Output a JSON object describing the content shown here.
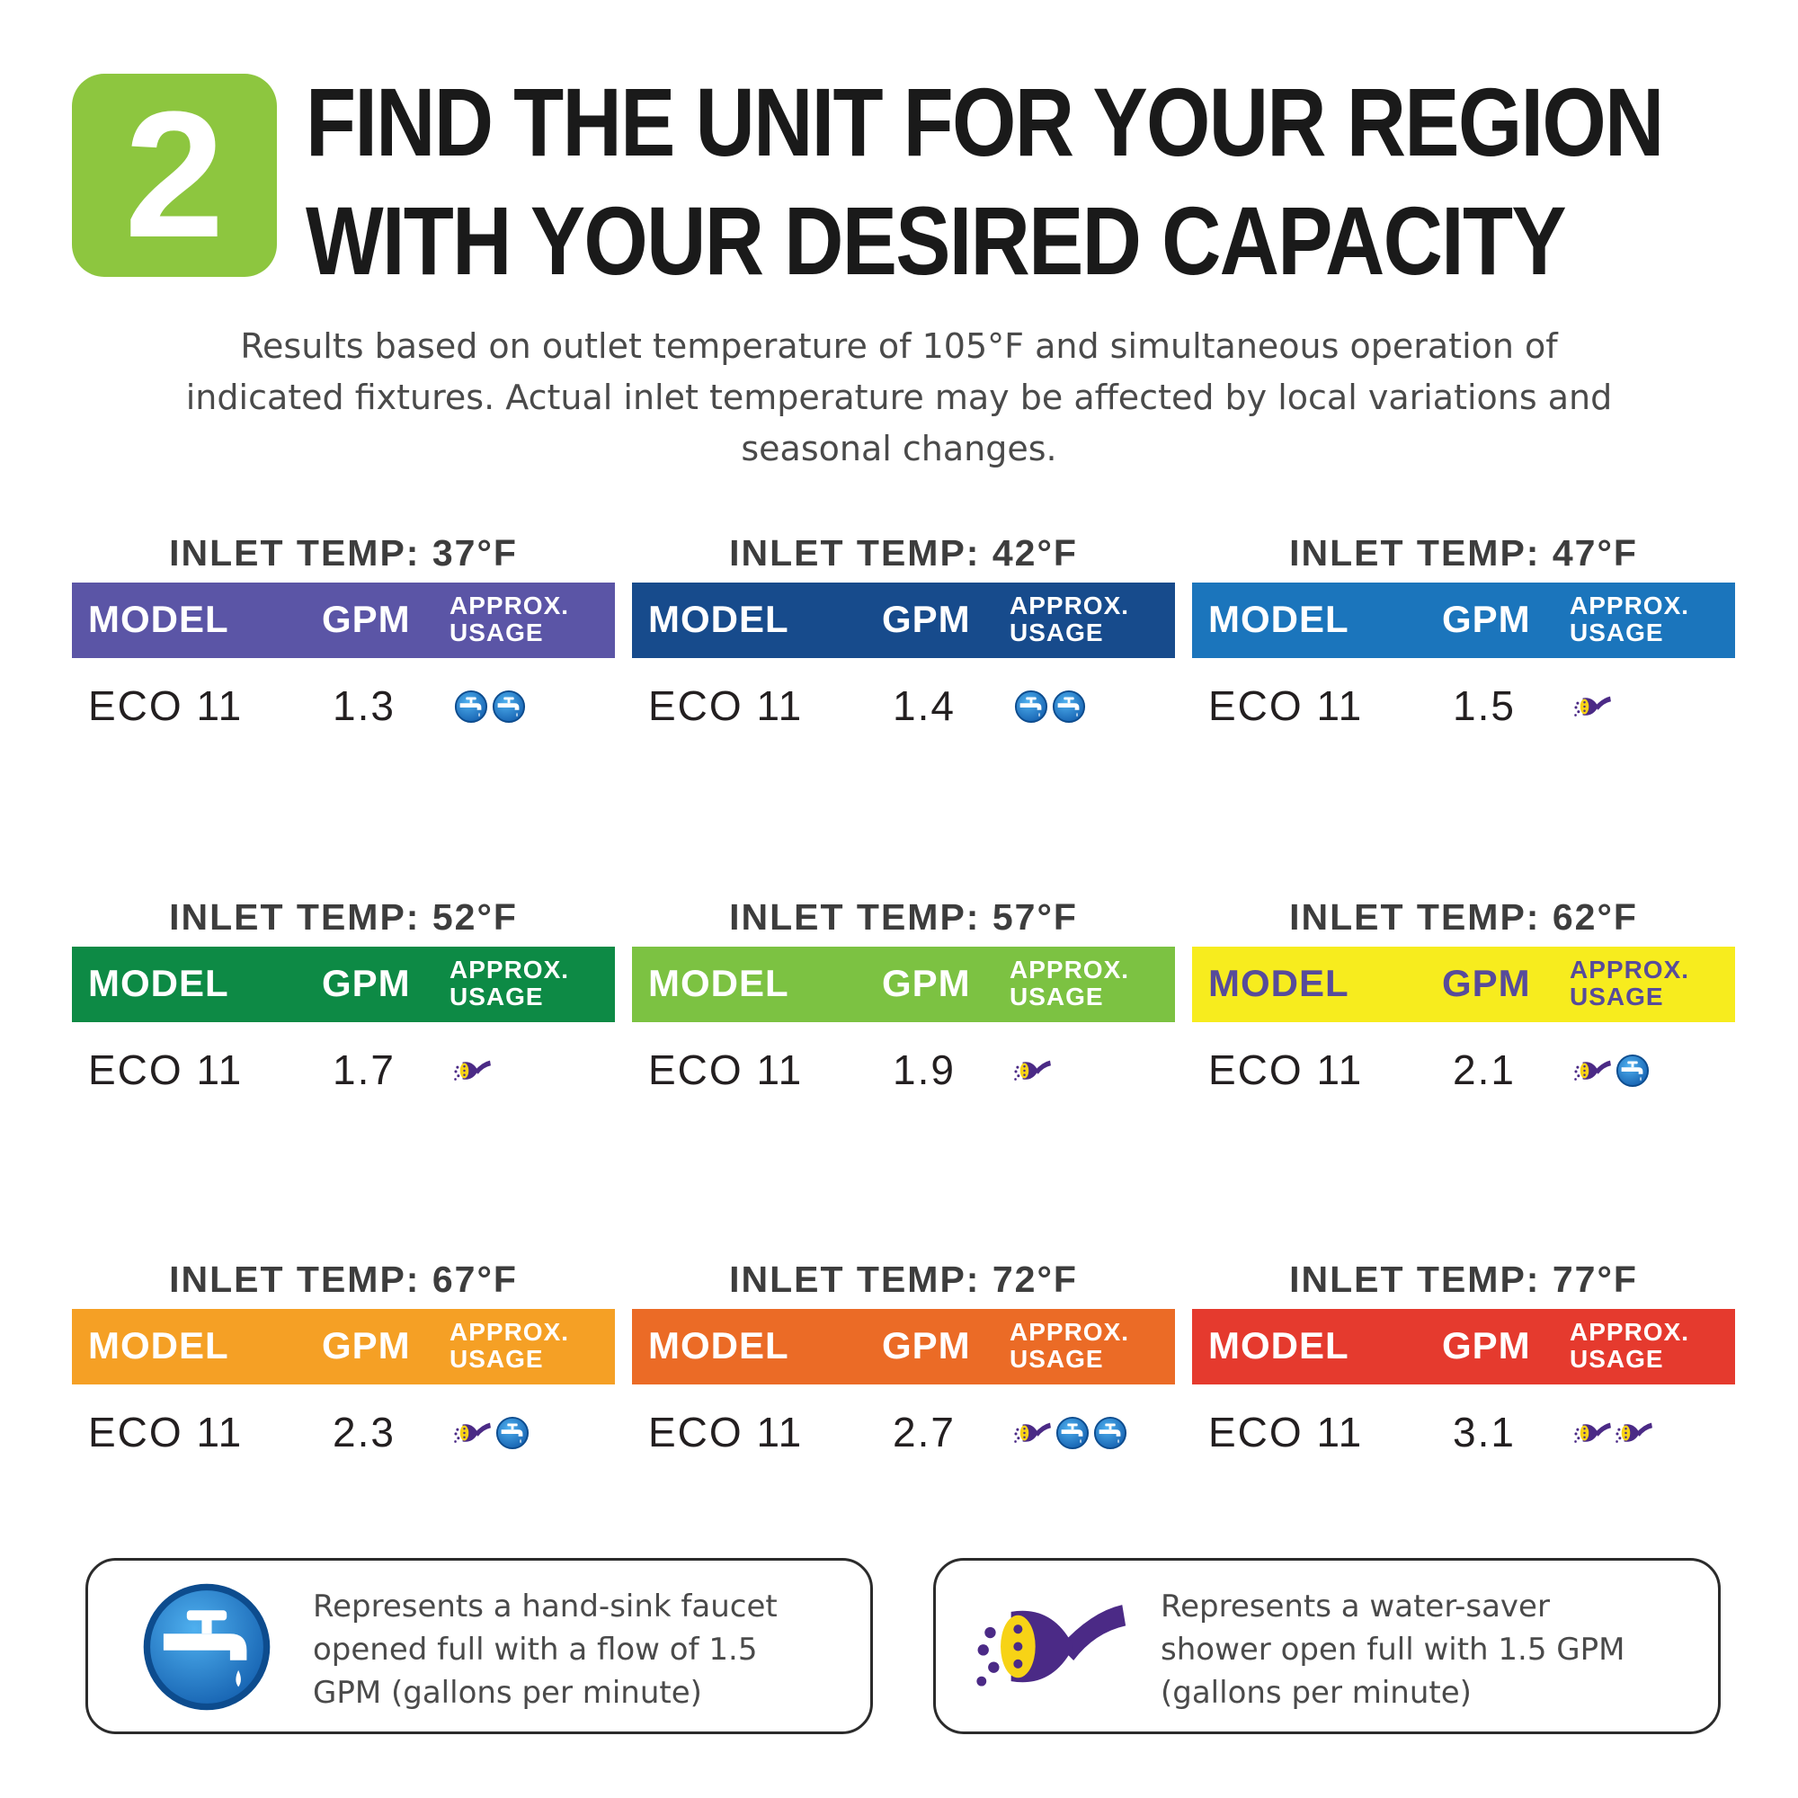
{
  "header": {
    "step_number": "2",
    "title_line1": "FIND THE UNIT FOR YOUR REGION",
    "title_line2": "WITH YOUR DESIRED CAPACITY",
    "badge_color": "#8dc63f"
  },
  "subtitle": {
    "line1": "Results based on outlet temperature of 105°F and simultaneous operation of",
    "line2": "indicated fixtures. Actual inlet temperature may be affected by local variations and",
    "line3": "seasonal changes."
  },
  "columns": {
    "model": "MODEL",
    "gpm": "GPM",
    "usage_line1": "APPROX.",
    "usage_line2": "USAGE"
  },
  "cards": [
    {
      "title": "INLET TEMP: 37°F",
      "color": "#5b55a6",
      "text_color": "#ffffff",
      "model": "ECO 11",
      "gpm": "1.3",
      "usage": [
        "faucet-icon",
        "faucet-icon"
      ]
    },
    {
      "title": "INLET TEMP: 42°F",
      "color": "#174b8c",
      "text_color": "#ffffff",
      "model": "ECO 11",
      "gpm": "1.4",
      "usage": [
        "faucet-icon",
        "faucet-icon"
      ]
    },
    {
      "title": "INLET TEMP: 47°F",
      "color": "#1b75bc",
      "text_color": "#ffffff",
      "model": "ECO 11",
      "gpm": "1.5",
      "usage": [
        "shower-icon"
      ]
    },
    {
      "title": "INLET TEMP: 52°F",
      "color": "#0d8a45",
      "text_color": "#ffffff",
      "model": "ECO 11",
      "gpm": "1.7",
      "usage": [
        "shower-icon"
      ]
    },
    {
      "title": "INLET TEMP: 57°F",
      "color": "#7cc242",
      "text_color": "#ffffff",
      "model": "ECO 11",
      "gpm": "1.9",
      "usage": [
        "shower-icon"
      ]
    },
    {
      "title": "INLET TEMP: 62°F",
      "color": "#f7ec1e",
      "text_color": "#574b9b",
      "model": "ECO 11",
      "gpm": "2.1",
      "usage": [
        "shower-icon",
        "faucet-icon"
      ]
    },
    {
      "title": "INLET TEMP: 67°F",
      "color": "#f5a025",
      "text_color": "#ffffff",
      "model": "ECO 11",
      "gpm": "2.3",
      "usage": [
        "shower-icon",
        "faucet-icon"
      ]
    },
    {
      "title": "INLET TEMP: 72°F",
      "color": "#eb6b26",
      "text_color": "#ffffff",
      "model": "ECO 11",
      "gpm": "2.7",
      "usage": [
        "shower-icon",
        "faucet-icon",
        "faucet-icon"
      ]
    },
    {
      "title": "INLET TEMP: 77°F",
      "color": "#e53a2e",
      "text_color": "#ffffff",
      "model": "ECO 11",
      "gpm": "3.1",
      "usage": [
        "shower-icon",
        "shower-icon"
      ]
    }
  ],
  "legend": {
    "faucet": {
      "icon": "faucet-icon",
      "line1": "Represents a hand-sink faucet",
      "line2": "opened full with a flow of 1.5",
      "line3": "GPM (gallons per minute)"
    },
    "shower": {
      "icon": "shower-icon",
      "line1": "Represents a water-saver",
      "line2": "shower open full with 1.5 GPM",
      "line3": "(gallons per minute)"
    }
  },
  "icon_colors": {
    "faucet_blue": "#1f7fc9",
    "shower_purple": "#4b2a86",
    "shower_yellow": "#f7d316"
  }
}
